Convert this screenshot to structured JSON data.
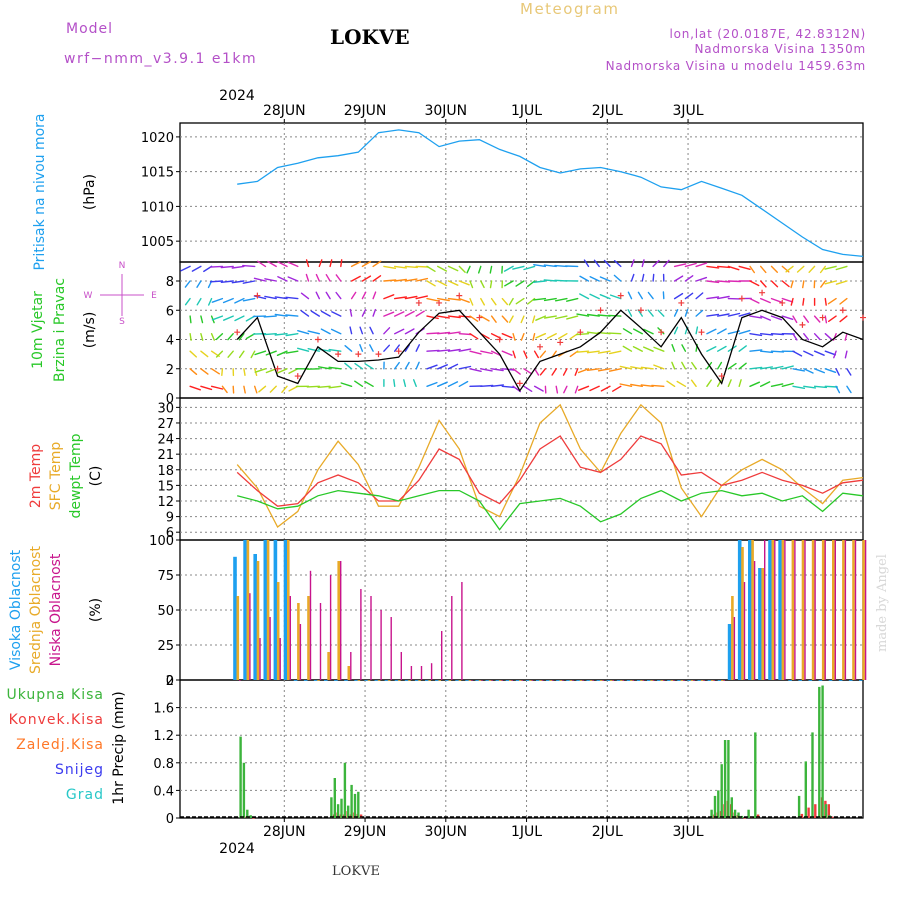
{
  "header": {
    "model_label": "Model",
    "model_name": "wrf−nmm_v3.9.1 e1km",
    "station": "LOKVE",
    "meteogram": "Meteogram",
    "lonlat": "lon,lat (20.0187E, 42.8312N)",
    "elevation": "Nadmorska Visina 1350m",
    "model_elevation": "Nadmorska Visina u modelu 1459.63m",
    "year_top": "2024",
    "year_bottom": "2024",
    "footer_station": "LOKVE",
    "credit": "made by Angel"
  },
  "colors": {
    "pressure": "#1ea0ef",
    "t2m": "#ef3c3c",
    "sfc": "#e8aa28",
    "dewpt": "#28c828",
    "high_cloud": "#1ea0ef",
    "mid_cloud": "#e8aa28",
    "low_cloud": "#c8148c",
    "total_precip": "#3cb43c",
    "conv_precip": "#ef3c3c",
    "frozen_precip": "#ff7828",
    "snow": "#3c3cef",
    "grad": "#28c8c8",
    "wind_speed": "#000000",
    "gust": "#ef3c3c",
    "compass": "#c850c8"
  },
  "chart_data": [
    {
      "type": "line",
      "panel": "pressure",
      "ylabel": [
        "Pritisak na nivou mora",
        "(hPa)"
      ],
      "ylim": [
        1002,
        1022
      ],
      "yticks": [
        1005,
        1010,
        1015,
        1020
      ],
      "date_ticks": [
        "28JUN",
        "29JUN",
        "30JUN",
        "1JUL",
        "2JUL",
        "3JUL"
      ],
      "grid": true,
      "x_hours": [
        0,
        6,
        12,
        18,
        24,
        30,
        36,
        42,
        48,
        54,
        60,
        66,
        72,
        78,
        84,
        90,
        96,
        102,
        108,
        114,
        120,
        126,
        132,
        138,
        144,
        150,
        156,
        162,
        168,
        174,
        180,
        186
      ],
      "series": [
        {
          "name": "Pritisak na nivou mora",
          "values": [
            1013.2,
            1013.6,
            1015.6,
            1016.2,
            1017.0,
            1017.3,
            1017.8,
            1020.6,
            1021.0,
            1020.6,
            1018.6,
            1019.4,
            1019.6,
            1018.2,
            1017.2,
            1015.6,
            1014.8,
            1015.4,
            1015.6,
            1015.0,
            1014.2,
            1012.8,
            1012.4,
            1013.6,
            1012.6,
            1011.6,
            1009.6,
            1007.6,
            1005.6,
            1003.8,
            1003.1,
            1002.8
          ]
        }
      ]
    },
    {
      "type": "line",
      "panel": "wind",
      "ylabel": [
        "10m Vjetar",
        "Brzina i Pravac",
        "(m/s)"
      ],
      "compass": [
        "N",
        "E",
        "S",
        "W"
      ],
      "ylim": [
        0,
        9.3
      ],
      "yticks": [
        0,
        2,
        4,
        6,
        8
      ],
      "grid": true,
      "x_hours": [
        0,
        6,
        12,
        18,
        24,
        30,
        36,
        42,
        48,
        54,
        60,
        66,
        72,
        78,
        84,
        90,
        96,
        102,
        108,
        114,
        120,
        126,
        132,
        138,
        144,
        150,
        156,
        162,
        168,
        174,
        180,
        186
      ],
      "series": [
        {
          "name": "speed",
          "values": [
            4.0,
            5.5,
            1.5,
            1.0,
            3.5,
            2.5,
            2.5,
            2.6,
            2.8,
            4.5,
            5.8,
            6.0,
            4.5,
            3.0,
            0.5,
            2.5,
            3.0,
            3.5,
            4.5,
            6.0,
            4.8,
            3.5,
            5.5,
            3.0,
            1.0,
            5.5,
            6.0,
            5.5,
            4.0,
            3.5,
            4.5,
            4.0
          ]
        },
        {
          "name": "gust",
          "values": [
            4.5,
            7.0,
            2.0,
            1.5,
            4.0,
            3.0,
            3.0,
            3.0,
            3.2,
            6.5,
            6.5,
            7.0,
            5.5,
            4.0,
            1.0,
            3.5,
            3.8,
            4.5,
            6.0,
            7.0,
            6.0,
            4.5,
            6.5,
            4.5,
            1.5,
            6.8,
            7.2,
            6.5,
            5.0,
            5.5,
            6.0,
            5.5
          ]
        }
      ]
    },
    {
      "type": "line",
      "panel": "temperature",
      "ylabel": [
        "2m Temp",
        "SFC Temp",
        "dewpt Temp",
        "(C)"
      ],
      "ylim": [
        4.5,
        31.8
      ],
      "yticks": [
        6,
        9,
        12,
        15,
        18,
        21,
        24,
        27,
        30
      ],
      "grid": true,
      "x_hours": [
        0,
        6,
        12,
        18,
        24,
        30,
        36,
        42,
        48,
        54,
        60,
        66,
        72,
        78,
        84,
        90,
        96,
        102,
        108,
        114,
        120,
        126,
        132,
        138,
        144,
        150,
        156,
        162,
        168,
        174,
        180,
        186
      ],
      "series": [
        {
          "name": "2m Temp",
          "values": [
            17.5,
            14.0,
            11.0,
            11.5,
            15.5,
            17.0,
            15.5,
            12.0,
            12.0,
            16.0,
            22.0,
            20.0,
            13.5,
            11.5,
            16.0,
            22.0,
            24.5,
            18.5,
            17.5,
            20.0,
            24.5,
            23.0,
            17.0,
            17.5,
            15.0,
            16.0,
            17.5,
            16.0,
            15.0,
            13.5,
            15.5,
            16.0
          ]
        },
        {
          "name": "SFC Temp",
          "values": [
            19.0,
            14.5,
            7.0,
            10.0,
            18.0,
            23.5,
            19.0,
            11.0,
            11.0,
            18.5,
            27.5,
            22.0,
            11.0,
            9.0,
            17.0,
            27.0,
            30.5,
            22.0,
            17.5,
            25.0,
            30.5,
            27.0,
            14.5,
            9.0,
            15.0,
            18.0,
            20.0,
            18.0,
            14.5,
            11.5,
            16.0,
            16.5
          ]
        },
        {
          "name": "dewpt Temp",
          "values": [
            13.0,
            12.0,
            10.5,
            11.0,
            13.0,
            14.0,
            13.5,
            13.0,
            12.0,
            13.0,
            14.0,
            14.0,
            12.0,
            6.5,
            11.5,
            12.0,
            12.5,
            11.0,
            8.0,
            9.5,
            12.5,
            14.0,
            12.0,
            13.5,
            14.0,
            13.0,
            13.5,
            12.0,
            13.0,
            10.0,
            13.5,
            13.0
          ]
        }
      ]
    },
    {
      "type": "bar",
      "panel": "cloud",
      "ylabel": [
        "Visoka Oblacnost",
        "Srednja Oblacnost",
        "Niska Oblacnost",
        "(%)"
      ],
      "ylim": [
        0,
        100
      ],
      "yticks": [
        0,
        25,
        50,
        75,
        100
      ],
      "grid": true,
      "x_hours": [
        0,
        3,
        6,
        9,
        12,
        15,
        18,
        21,
        24,
        27,
        30,
        33,
        36,
        39,
        42,
        45,
        48,
        51,
        54,
        57,
        60,
        63,
        66,
        69,
        72,
        75,
        78,
        81,
        84,
        87,
        90,
        93,
        96,
        99,
        102,
        105,
        108,
        111,
        114,
        117,
        120,
        123,
        126,
        129,
        132,
        135,
        138,
        141,
        144,
        147,
        150,
        153,
        156,
        159,
        162,
        165,
        168,
        171,
        174,
        177,
        180,
        183,
        186
      ],
      "series": [
        {
          "name": "Visoka Oblacnost",
          "values": [
            88,
            100,
            90,
            100,
            100,
            100,
            0,
            0,
            0,
            0,
            0,
            0,
            0,
            0,
            0,
            0,
            0,
            0,
            0,
            0,
            0,
            0,
            0,
            0,
            0,
            0,
            0,
            0,
            0,
            0,
            0,
            0,
            0,
            0,
            0,
            0,
            0,
            0,
            0,
            0,
            0,
            0,
            0,
            0,
            0,
            0,
            0,
            0,
            0,
            40,
            100,
            100,
            80,
            100,
            100,
            0,
            0,
            0,
            0,
            0,
            0,
            0,
            0
          ]
        },
        {
          "name": "Srednja Oblacnost",
          "values": [
            60,
            100,
            85,
            100,
            70,
            100,
            55,
            60,
            0,
            20,
            85,
            10,
            0,
            0,
            0,
            0,
            0,
            0,
            0,
            0,
            0,
            0,
            0,
            0,
            0,
            0,
            0,
            0,
            0,
            0,
            0,
            0,
            0,
            0,
            0,
            0,
            0,
            0,
            0,
            0,
            0,
            0,
            0,
            0,
            0,
            0,
            0,
            0,
            0,
            60,
            95,
            100,
            80,
            100,
            100,
            100,
            100,
            100,
            100,
            100,
            100,
            100,
            100
          ]
        },
        {
          "name": "Niska Oblacnost",
          "values": [
            0,
            62,
            30,
            45,
            30,
            60,
            40,
            78,
            55,
            75,
            85,
            20,
            65,
            60,
            50,
            45,
            20,
            10,
            10,
            12,
            35,
            60,
            70,
            0,
            0,
            0,
            0,
            0,
            0,
            0,
            0,
            0,
            0,
            0,
            0,
            0,
            0,
            0,
            0,
            0,
            0,
            0,
            0,
            0,
            0,
            0,
            0,
            0,
            0,
            45,
            70,
            85,
            100,
            100,
            100,
            100,
            100,
            100,
            100,
            100,
            100,
            100,
            100
          ]
        }
      ]
    },
    {
      "type": "bar",
      "panel": "precip",
      "ylabel": [
        "1hr Precip (mm)"
      ],
      "legend": [
        "Ukupna Kisa",
        "Konvek.Kisa",
        "Zaledj.Kisa",
        "Snijeg",
        "Grad"
      ],
      "ylim": [
        0,
        2
      ],
      "yticks": [
        0,
        0.4,
        0.8,
        1.2,
        1.6,
        2
      ],
      "grid": true,
      "bottom_date_ticks": [
        "28JUN",
        "29JUN",
        "30JUN",
        "1JUL",
        "2JUL",
        "3JUL"
      ],
      "x_hours": [
        1,
        2,
        3,
        4,
        28,
        29,
        30,
        31,
        32,
        33,
        34,
        35,
        36,
        141,
        142,
        143,
        144,
        145,
        146,
        147,
        148,
        149,
        150,
        152,
        154,
        167,
        169,
        171,
        173,
        174,
        175,
        176
      ],
      "series": [
        {
          "name": "Ukupna Kisa",
          "values": [
            1.18,
            0.8,
            0.12,
            0.04,
            0.3,
            0.58,
            0.2,
            0.28,
            0.8,
            0.18,
            0.48,
            0.35,
            0.38,
            0.12,
            0.32,
            0.4,
            0.78,
            1.13,
            1.13,
            0.3,
            0.12,
            0.08,
            0.03,
            0.12,
            1.24,
            0.32,
            0.82,
            1.24,
            1.9,
            1.92,
            0.2,
            0.04
          ]
        },
        {
          "name": "Konvek.Kisa",
          "values": [
            0.02,
            0.02,
            0.02,
            0.0,
            0.05,
            0.08,
            0.05,
            0.05,
            0.1,
            0.05,
            0.08,
            0.06,
            0.05,
            0.05,
            0.08,
            0.1,
            0.2,
            0.25,
            0.2,
            0.08,
            0.04,
            0.02,
            0.0,
            0.02,
            0.05,
            0.06,
            0.15,
            0.2,
            0.3,
            0.25,
            0.2,
            0.02
          ]
        }
      ]
    }
  ]
}
